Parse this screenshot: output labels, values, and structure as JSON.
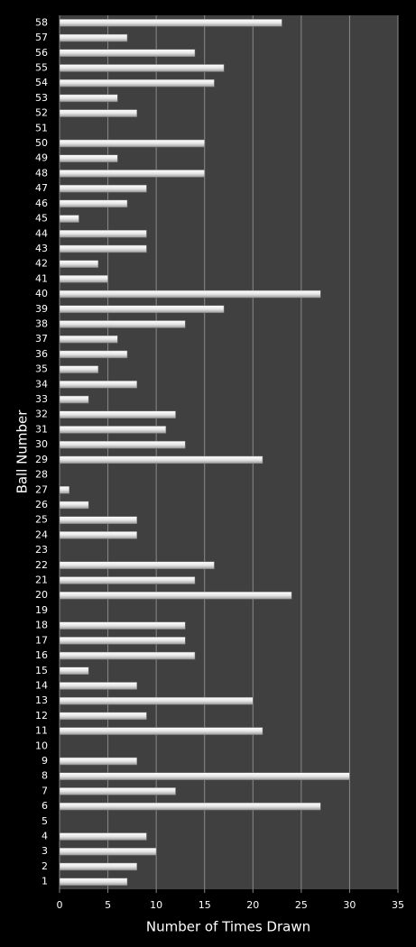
{
  "chart_data": {
    "type": "barh",
    "x_label": "Number of Times Drawn",
    "y_label": "Ball Number",
    "categories": [
      "1",
      "2",
      "3",
      "4",
      "5",
      "6",
      "7",
      "8",
      "9",
      "10",
      "11",
      "12",
      "13",
      "14",
      "15",
      "16",
      "17",
      "18",
      "19",
      "20",
      "21",
      "22",
      "23",
      "24",
      "25",
      "26",
      "27",
      "28",
      "29",
      "30",
      "31",
      "32",
      "33",
      "34",
      "35",
      "36",
      "37",
      "38",
      "39",
      "40",
      "41",
      "42",
      "43",
      "44",
      "45",
      "46",
      "47",
      "48",
      "49",
      "50",
      "51",
      "52",
      "53",
      "54",
      "55",
      "56",
      "57",
      "58"
    ],
    "values": [
      7,
      8,
      10,
      9,
      0,
      27,
      12,
      30,
      8,
      0,
      21,
      9,
      20,
      8,
      3,
      14,
      13,
      13,
      0,
      24,
      14,
      16,
      0,
      8,
      8,
      3,
      1,
      0,
      21,
      13,
      11,
      12,
      3,
      8,
      4,
      7,
      6,
      13,
      17,
      27,
      5,
      4,
      9,
      9,
      2,
      7,
      9,
      15,
      6,
      15,
      0,
      8,
      6,
      16,
      17,
      14,
      7,
      23
    ],
    "color": "#e8e8e8",
    "xlim": [
      0,
      35
    ],
    "xticks": [
      0,
      5,
      10,
      15,
      20,
      25,
      30,
      35
    ],
    "grid": true
  }
}
